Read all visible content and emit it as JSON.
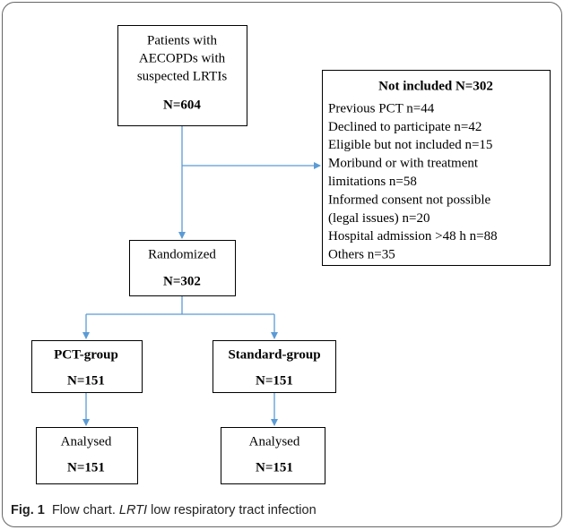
{
  "nodes": [
    {
      "lines": [
        "Patients with",
        "AECOPDs with",
        "suspected LRTIs"
      ],
      "count": "N=604"
    },
    {
      "title": "Not included N=302",
      "lines": [
        "Previous PCT n=44",
        "Declined to participate n=42",
        "Eligible but not included n=15",
        "Moribund or with treatment",
        "limitations n=58",
        "Informed consent not possible",
        "(legal issues) n=20",
        "Hospital admission >48 h n=88",
        "Others n=35"
      ]
    },
    {
      "lines": [
        "Randomized"
      ],
      "count": "N=302"
    },
    {
      "title": "PCT-group",
      "count": "N=151"
    },
    {
      "title": "Standard-group",
      "count": "N=151"
    },
    {
      "lines": [
        "Analysed"
      ],
      "count": "N=151"
    },
    {
      "lines": [
        "Analysed"
      ],
      "count": "N=151"
    }
  ],
  "caption": {
    "label": "Fig. 1",
    "text": "Flow chart.",
    "abbr": "LRTI",
    "definition": "low respiratory tract infection"
  }
}
